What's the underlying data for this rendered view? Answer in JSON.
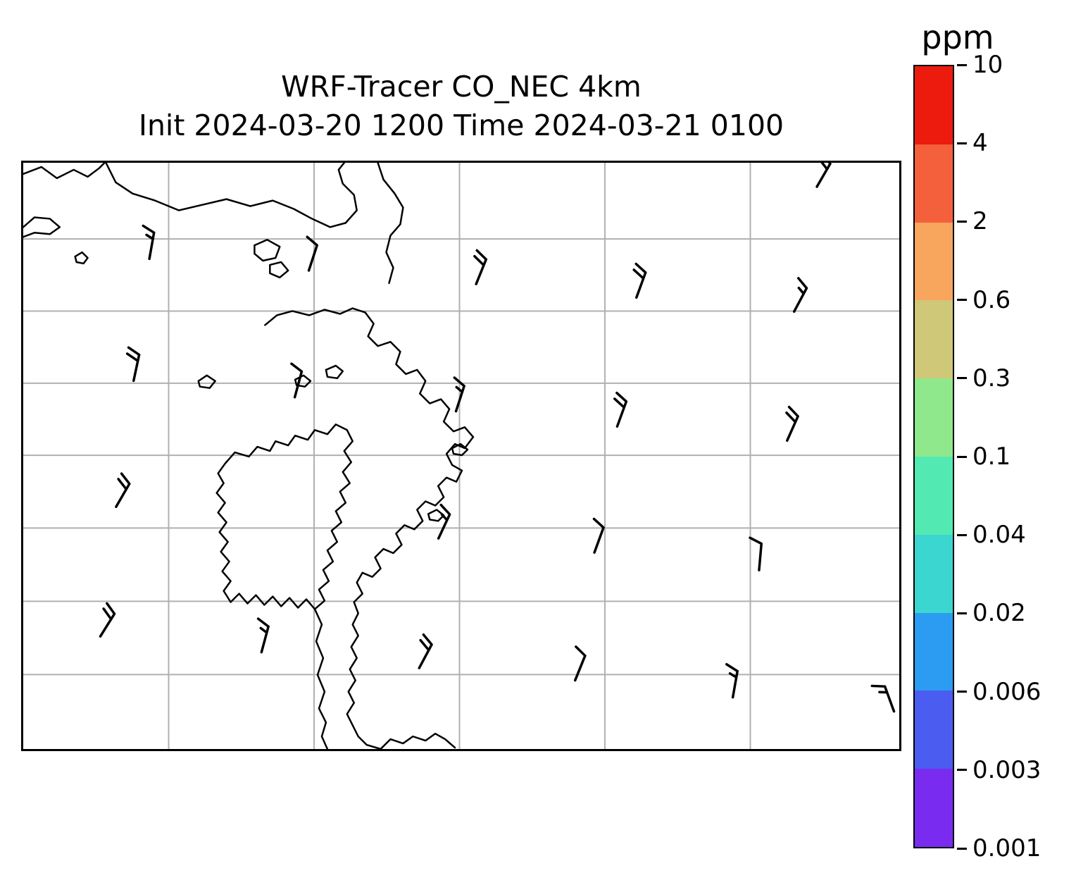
{
  "title": {
    "line1": "WRF-Tracer CO_NEC 4km",
    "line2": "Init 2024-03-20 1200 Time 2024-03-21 0100"
  },
  "colorbar": {
    "label": "ppm",
    "ticks": [
      "10",
      "4",
      "2",
      "0.6",
      "0.3",
      "0.1",
      "0.04",
      "0.02",
      "0.006",
      "0.003",
      "0.001"
    ],
    "segments": [
      {
        "range": "4-10",
        "color": "#ec1b0e"
      },
      {
        "range": "2-4",
        "color": "#f4603c"
      },
      {
        "range": "0.6-2",
        "color": "#f8a55e"
      },
      {
        "range": "0.3-0.6",
        "color": "#cfc878"
      },
      {
        "range": "0.1-0.3",
        "color": "#8fe88b"
      },
      {
        "range": "0.04-0.1",
        "color": "#52eab2"
      },
      {
        "range": "0.02-0.04",
        "color": "#3bd6d0"
      },
      {
        "range": "0.006-0.02",
        "color": "#2b9cf2"
      },
      {
        "range": "0.003-0.006",
        "color": "#4b5df0"
      },
      {
        "range": "0.001-0.003",
        "color": "#7a2bf0"
      }
    ]
  },
  "chart_data": {
    "type": "heatmap",
    "title": "WRF-Tracer CO_NEC 4km",
    "subtitle": "Init 2024-03-20 1200 Time 2024-03-21 0100",
    "units": "ppm",
    "colorbar_levels": [
      0.001,
      0.003,
      0.006,
      0.02,
      0.04,
      0.1,
      0.3,
      0.6,
      2,
      4,
      10
    ],
    "colorbar_colors_bottom_to_top": [
      "#7a2bf0",
      "#4b5df0",
      "#2b9cf2",
      "#3bd6d0",
      "#52eab2",
      "#8fe88b",
      "#cfc878",
      "#f8a55e",
      "#f4603c",
      "#ec1b0e"
    ],
    "filled_contours_visible": false,
    "grid": {
      "on": true,
      "color": "#b0b0b0",
      "vertical_fracs": [
        0.166,
        0.332,
        0.498,
        0.664,
        0.83
      ],
      "horizontal_fracs": [
        0.13,
        0.253,
        0.376,
        0.499,
        0.623,
        0.748,
        0.873
      ]
    },
    "wind_barbs": [
      {
        "x": 0.906,
        "y": 0.017,
        "angle": 30,
        "ticks": 2
      },
      {
        "x": 0.144,
        "y": 0.14,
        "angle": 10,
        "ticks": 1.5
      },
      {
        "x": 0.326,
        "y": 0.16,
        "angle": 18,
        "ticks": 1
      },
      {
        "x": 0.517,
        "y": 0.183,
        "angle": 22,
        "ticks": 2
      },
      {
        "x": 0.7,
        "y": 0.206,
        "angle": 20,
        "ticks": 2
      },
      {
        "x": 0.88,
        "y": 0.23,
        "angle": 28,
        "ticks": 1.5
      },
      {
        "x": 0.126,
        "y": 0.348,
        "angle": 12,
        "ticks": 2
      },
      {
        "x": 0.31,
        "y": 0.376,
        "angle": 15,
        "ticks": 1
      },
      {
        "x": 0.494,
        "y": 0.4,
        "angle": 18,
        "ticks": 1.5
      },
      {
        "x": 0.678,
        "y": 0.426,
        "angle": 20,
        "ticks": 2
      },
      {
        "x": 0.872,
        "y": 0.45,
        "angle": 24,
        "ticks": 2
      },
      {
        "x": 0.106,
        "y": 0.563,
        "angle": 30,
        "ticks": 2
      },
      {
        "x": 0.474,
        "y": 0.617,
        "angle": 25,
        "ticks": 1.5
      },
      {
        "x": 0.652,
        "y": 0.641,
        "angle": 20,
        "ticks": 1
      },
      {
        "x": 0.84,
        "y": 0.671,
        "angle": 5,
        "ticks": 1
      },
      {
        "x": 0.088,
        "y": 0.784,
        "angle": 32,
        "ticks": 2
      },
      {
        "x": 0.272,
        "y": 0.811,
        "angle": 15,
        "ticks": 1.5
      },
      {
        "x": 0.452,
        "y": 0.838,
        "angle": 28,
        "ticks": 2
      },
      {
        "x": 0.63,
        "y": 0.859,
        "angle": 22,
        "ticks": 1
      },
      {
        "x": 0.81,
        "y": 0.888,
        "angle": 10,
        "ticks": 1.5
      },
      {
        "x": 0.994,
        "y": 0.912,
        "angle": -20,
        "ticks": 1.5
      }
    ]
  }
}
